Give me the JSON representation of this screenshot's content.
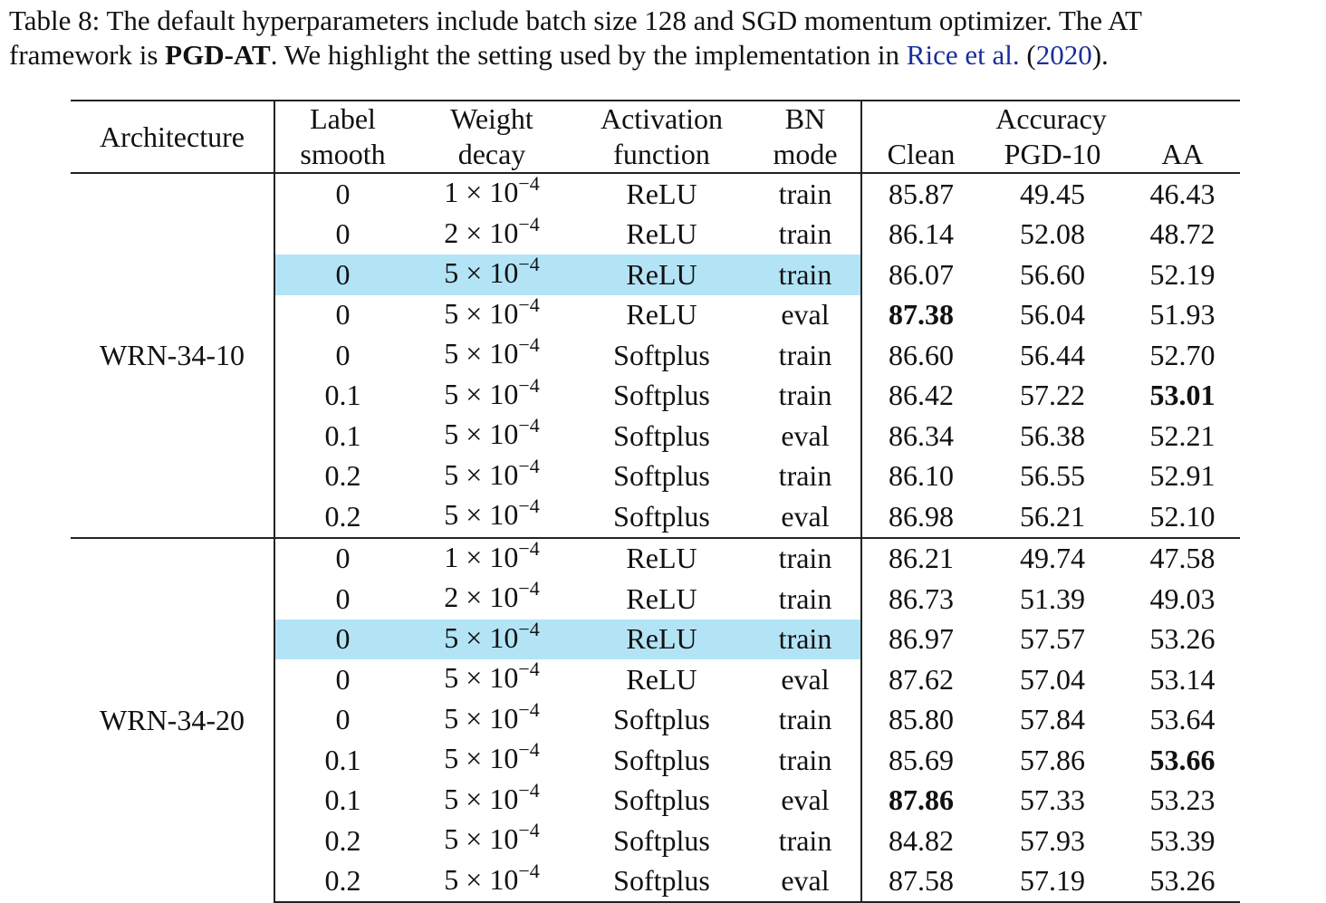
{
  "caption": {
    "p1": "Table 8: The default hyperparameters include batch size 128 and SGD momentum optimizer. The AT",
    "p2": "framework is ",
    "bold": "PGD-AT",
    "p3": ". We highlight the setting used by the implementation in ",
    "cite_authors": "Rice et al.",
    "p4": " (",
    "cite_year": "2020",
    "p5": ")."
  },
  "headers": {
    "architecture": "Architecture",
    "label_smooth_1": "Label",
    "label_smooth_2": "smooth",
    "weight_decay_1": "Weight",
    "weight_decay_2": "decay",
    "activation_1": "Activation",
    "activation_2": "function",
    "bn_1": "BN",
    "bn_2": "mode",
    "accuracy": "Accuracy",
    "clean": "Clean",
    "pgd": "PGD-10",
    "aa": "AA"
  },
  "groups": [
    {
      "arch": "WRN-34-10",
      "rows": [
        {
          "ls": "0",
          "wd_base": "1 × 10",
          "wd_exp": "−4",
          "act": "ReLU",
          "bn": "train",
          "clean": "85.87",
          "pgd": "49.45",
          "aa": "46.43",
          "highlight": false,
          "bold_clean": false,
          "bold_aa": false
        },
        {
          "ls": "0",
          "wd_base": "2 × 10",
          "wd_exp": "−4",
          "act": "ReLU",
          "bn": "train",
          "clean": "86.14",
          "pgd": "52.08",
          "aa": "48.72",
          "highlight": false,
          "bold_clean": false,
          "bold_aa": false
        },
        {
          "ls": "0",
          "wd_base": "5 × 10",
          "wd_exp": "−4",
          "act": "ReLU",
          "bn": "train",
          "clean": "86.07",
          "pgd": "56.60",
          "aa": "52.19",
          "highlight": true,
          "bold_clean": false,
          "bold_aa": false
        },
        {
          "ls": "0",
          "wd_base": "5 × 10",
          "wd_exp": "−4",
          "act": "ReLU",
          "bn": "eval",
          "clean": "87.38",
          "pgd": "56.04",
          "aa": "51.93",
          "highlight": false,
          "bold_clean": true,
          "bold_aa": false
        },
        {
          "ls": "0",
          "wd_base": "5 × 10",
          "wd_exp": "−4",
          "act": "Softplus",
          "bn": "train",
          "clean": "86.60",
          "pgd": "56.44",
          "aa": "52.70",
          "highlight": false,
          "bold_clean": false,
          "bold_aa": false
        },
        {
          "ls": "0.1",
          "wd_base": "5 × 10",
          "wd_exp": "−4",
          "act": "Softplus",
          "bn": "train",
          "clean": "86.42",
          "pgd": "57.22",
          "aa": "53.01",
          "highlight": false,
          "bold_clean": false,
          "bold_aa": true
        },
        {
          "ls": "0.1",
          "wd_base": "5 × 10",
          "wd_exp": "−4",
          "act": "Softplus",
          "bn": "eval",
          "clean": "86.34",
          "pgd": "56.38",
          "aa": "52.21",
          "highlight": false,
          "bold_clean": false,
          "bold_aa": false
        },
        {
          "ls": "0.2",
          "wd_base": "5 × 10",
          "wd_exp": "−4",
          "act": "Softplus",
          "bn": "train",
          "clean": "86.10",
          "pgd": "56.55",
          "aa": "52.91",
          "highlight": false,
          "bold_clean": false,
          "bold_aa": false
        },
        {
          "ls": "0.2",
          "wd_base": "5 × 10",
          "wd_exp": "−4",
          "act": "Softplus",
          "bn": "eval",
          "clean": "86.98",
          "pgd": "56.21",
          "aa": "52.10",
          "highlight": false,
          "bold_clean": false,
          "bold_aa": false
        }
      ]
    },
    {
      "arch": "WRN-34-20",
      "rows": [
        {
          "ls": "0",
          "wd_base": "1 × 10",
          "wd_exp": "−4",
          "act": "ReLU",
          "bn": "train",
          "clean": "86.21",
          "pgd": "49.74",
          "aa": "47.58",
          "highlight": false,
          "bold_clean": false,
          "bold_aa": false
        },
        {
          "ls": "0",
          "wd_base": "2 × 10",
          "wd_exp": "−4",
          "act": "ReLU",
          "bn": "train",
          "clean": "86.73",
          "pgd": "51.39",
          "aa": "49.03",
          "highlight": false,
          "bold_clean": false,
          "bold_aa": false
        },
        {
          "ls": "0",
          "wd_base": "5 × 10",
          "wd_exp": "−4",
          "act": "ReLU",
          "bn": "train",
          "clean": "86.97",
          "pgd": "57.57",
          "aa": "53.26",
          "highlight": true,
          "bold_clean": false,
          "bold_aa": false
        },
        {
          "ls": "0",
          "wd_base": "5 × 10",
          "wd_exp": "−4",
          "act": "ReLU",
          "bn": "eval",
          "clean": "87.62",
          "pgd": "57.04",
          "aa": "53.14",
          "highlight": false,
          "bold_clean": false,
          "bold_aa": false
        },
        {
          "ls": "0",
          "wd_base": "5 × 10",
          "wd_exp": "−4",
          "act": "Softplus",
          "bn": "train",
          "clean": "85.80",
          "pgd": "57.84",
          "aa": "53.64",
          "highlight": false,
          "bold_clean": false,
          "bold_aa": false
        },
        {
          "ls": "0.1",
          "wd_base": "5 × 10",
          "wd_exp": "−4",
          "act": "Softplus",
          "bn": "train",
          "clean": "85.69",
          "pgd": "57.86",
          "aa": "53.66",
          "highlight": false,
          "bold_clean": false,
          "bold_aa": true
        },
        {
          "ls": "0.1",
          "wd_base": "5 × 10",
          "wd_exp": "−4",
          "act": "Softplus",
          "bn": "eval",
          "clean": "87.86",
          "pgd": "57.33",
          "aa": "53.23",
          "highlight": false,
          "bold_clean": true,
          "bold_aa": false
        },
        {
          "ls": "0.2",
          "wd_base": "5 × 10",
          "wd_exp": "−4",
          "act": "Softplus",
          "bn": "train",
          "clean": "84.82",
          "pgd": "57.93",
          "aa": "53.39",
          "highlight": false,
          "bold_clean": false,
          "bold_aa": false
        },
        {
          "ls": "0.2",
          "wd_base": "5 × 10",
          "wd_exp": "−4",
          "act": "Softplus",
          "bn": "eval",
          "clean": "87.58",
          "pgd": "57.19",
          "aa": "53.26",
          "highlight": false,
          "bold_clean": false,
          "bold_aa": false
        }
      ]
    }
  ]
}
